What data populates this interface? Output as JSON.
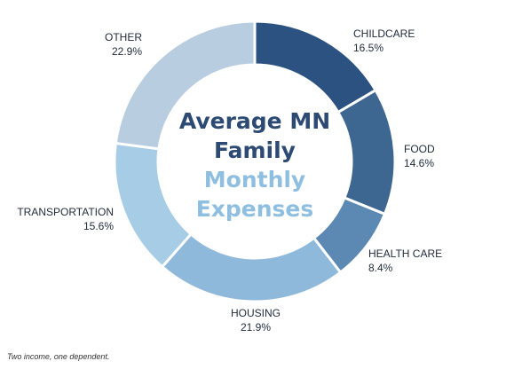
{
  "chart_data": {
    "type": "pie",
    "title_lines": [
      "Average MN",
      "Family",
      "Monthly",
      "Expenses"
    ],
    "slices": [
      {
        "label": "CHILDCARE",
        "value_label": "16.5%",
        "value": 16.5,
        "color": "#2c5282"
      },
      {
        "label": "FOOD",
        "value_label": "14.6%",
        "value": 14.6,
        "color": "#3d6690"
      },
      {
        "label": "HEALTH CARE",
        "value_label": "8.4%",
        "value": 8.4,
        "color": "#5b89b3"
      },
      {
        "label": "HOUSING",
        "value_label": "21.9%",
        "value": 21.9,
        "color": "#8fb9db"
      },
      {
        "label": "TRANSPORTATION",
        "value_label": "15.6%",
        "value": 15.6,
        "color": "#a7cce6"
      },
      {
        "label": "OTHER",
        "value_label": "22.9%",
        "value": 22.9,
        "color": "#b9cde0"
      }
    ]
  },
  "colors": {
    "title_dark": "#2c4a72",
    "title_light": "#8fbfe0"
  },
  "footnote": "Two income, one dependent."
}
